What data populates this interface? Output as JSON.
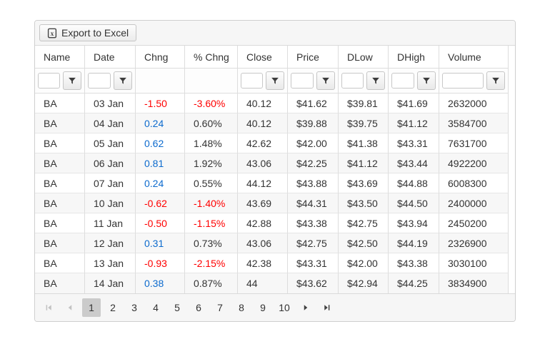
{
  "toolbar": {
    "export_label": "Export to Excel"
  },
  "table": {
    "columns": [
      {
        "label": "Name",
        "field": "name",
        "has_filter": true
      },
      {
        "label": "Date",
        "field": "date",
        "has_filter": true
      },
      {
        "label": "Chng",
        "field": "chng",
        "has_filter": false
      },
      {
        "label": "% Chng",
        "field": "chng_pct",
        "has_filter": false
      },
      {
        "label": "Close",
        "field": "close",
        "has_filter": true
      },
      {
        "label": "Price",
        "field": "price",
        "has_filter": true
      },
      {
        "label": "DLow",
        "field": "dlow",
        "has_filter": true
      },
      {
        "label": "DHigh",
        "field": "dhigh",
        "has_filter": true
      },
      {
        "label": "Volume",
        "field": "volume",
        "has_filter": true
      }
    ],
    "filter_input_value": "",
    "rows": [
      {
        "name": "BA",
        "date": "03 Jan",
        "chng": "-1.50",
        "chng_pct": "-3.60%",
        "close": "40.12",
        "price": "$41.62",
        "dlow": "$39.81",
        "dhigh": "$41.69",
        "volume": "2632000"
      },
      {
        "name": "BA",
        "date": "04 Jan",
        "chng": "0.24",
        "chng_pct": "0.60%",
        "close": "40.12",
        "price": "$39.88",
        "dlow": "$39.75",
        "dhigh": "$41.12",
        "volume": "3584700"
      },
      {
        "name": "BA",
        "date": "05 Jan",
        "chng": "0.62",
        "chng_pct": "1.48%",
        "close": "42.62",
        "price": "$42.00",
        "dlow": "$41.38",
        "dhigh": "$43.31",
        "volume": "7631700"
      },
      {
        "name": "BA",
        "date": "06 Jan",
        "chng": "0.81",
        "chng_pct": "1.92%",
        "close": "43.06",
        "price": "$42.25",
        "dlow": "$41.12",
        "dhigh": "$43.44",
        "volume": "4922200"
      },
      {
        "name": "BA",
        "date": "07 Jan",
        "chng": "0.24",
        "chng_pct": "0.55%",
        "close": "44.12",
        "price": "$43.88",
        "dlow": "$43.69",
        "dhigh": "$44.88",
        "volume": "6008300"
      },
      {
        "name": "BA",
        "date": "10 Jan",
        "chng": "-0.62",
        "chng_pct": "-1.40%",
        "close": "43.69",
        "price": "$44.31",
        "dlow": "$43.50",
        "dhigh": "$44.50",
        "volume": "2400000"
      },
      {
        "name": "BA",
        "date": "11 Jan",
        "chng": "-0.50",
        "chng_pct": "-1.15%",
        "close": "42.88",
        "price": "$43.38",
        "dlow": "$42.75",
        "dhigh": "$43.94",
        "volume": "2450200"
      },
      {
        "name": "BA",
        "date": "12 Jan",
        "chng": "0.31",
        "chng_pct": "0.73%",
        "close": "43.06",
        "price": "$42.75",
        "dlow": "$42.50",
        "dhigh": "$44.19",
        "volume": "2326900"
      },
      {
        "name": "BA",
        "date": "13 Jan",
        "chng": "-0.93",
        "chng_pct": "-2.15%",
        "close": "42.38",
        "price": "$43.31",
        "dlow": "$42.00",
        "dhigh": "$43.38",
        "volume": "3030100"
      },
      {
        "name": "BA",
        "date": "14 Jan",
        "chng": "0.38",
        "chng_pct": "0.87%",
        "close": "44",
        "price": "$43.62",
        "dlow": "$42.94",
        "dhigh": "$44.25",
        "volume": "3834900"
      }
    ]
  },
  "pager": {
    "pages": [
      "1",
      "2",
      "3",
      "4",
      "5",
      "6",
      "7",
      "8",
      "9",
      "10"
    ],
    "current_page": "1",
    "first_enabled": false,
    "prev_enabled": false,
    "next_enabled": true,
    "last_enabled": true
  },
  "colors": {
    "negative_text": "#ff0000",
    "positive_text": "#0d6bce",
    "alt_row_bg": "#f7f7f7"
  }
}
